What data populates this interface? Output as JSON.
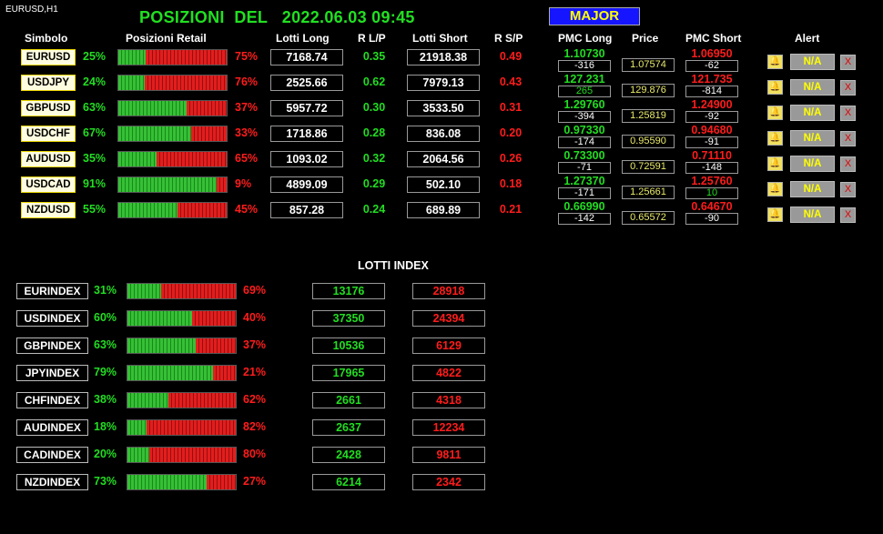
{
  "chart_label": "EURUSD,H1",
  "title": {
    "text": "POSIZIONI  DEL   2022.06.03 09:45"
  },
  "major_button": "MAJOR",
  "headers": {
    "simbolo": "Simbolo",
    "posizioni": "Posizioni Retail",
    "lotti_long": "Lotti Long",
    "rlp": "R L/P",
    "lotti_short": "Lotti Short",
    "rsp": "R S/P",
    "pmc_long": "PMC Long",
    "price": "Price",
    "pmc_short": "PMC Short",
    "alert": "Alert"
  },
  "pairs": [
    {
      "symbol": "EURUSD",
      "long_pct": "25%",
      "long_frac": 0.25,
      "short_pct": "75%",
      "lotti_long": "7168.74",
      "rlp": "0.35",
      "lotti_short": "21918.38",
      "rsp": "0.49",
      "pmc_long": "1.10730",
      "pmc_long_diff": "-316",
      "price": "1.07574",
      "pmc_short": "1.06950",
      "pmc_short_diff": "-62",
      "alert": "N/A",
      "bell": "🔔",
      "close": "X"
    },
    {
      "symbol": "USDJPY",
      "long_pct": "24%",
      "long_frac": 0.24,
      "short_pct": "76%",
      "lotti_long": "2525.66",
      "rlp": "0.62",
      "lotti_short": "7979.13",
      "rsp": "0.43",
      "pmc_long": "127.231",
      "pmc_long_diff": "265",
      "price": "129.876",
      "pmc_short": "121.735",
      "pmc_short_diff": "-814",
      "alert": "N/A",
      "bell": "🔔",
      "close": "X"
    },
    {
      "symbol": "GBPUSD",
      "long_pct": "63%",
      "long_frac": 0.63,
      "short_pct": "37%",
      "lotti_long": "5957.72",
      "rlp": "0.30",
      "lotti_short": "3533.50",
      "rsp": "0.31",
      "pmc_long": "1.29760",
      "pmc_long_diff": "-394",
      "price": "1.25819",
      "pmc_short": "1.24900",
      "pmc_short_diff": "-92",
      "alert": "N/A",
      "bell": "🔔",
      "close": "X"
    },
    {
      "symbol": "USDCHF",
      "long_pct": "67%",
      "long_frac": 0.67,
      "short_pct": "33%",
      "lotti_long": "1718.86",
      "rlp": "0.28",
      "lotti_short": "836.08",
      "rsp": "0.20",
      "pmc_long": "0.97330",
      "pmc_long_diff": "-174",
      "price": "0.95590",
      "pmc_short": "0.94680",
      "pmc_short_diff": "-91",
      "alert": "N/A",
      "bell": "🔔",
      "close": "X"
    },
    {
      "symbol": "AUDUSD",
      "long_pct": "35%",
      "long_frac": 0.35,
      "short_pct": "65%",
      "lotti_long": "1093.02",
      "rlp": "0.32",
      "lotti_short": "2064.56",
      "rsp": "0.26",
      "pmc_long": "0.73300",
      "pmc_long_diff": "-71",
      "price": "0.72591",
      "pmc_short": "0.71110",
      "pmc_short_diff": "-148",
      "alert": "N/A",
      "bell": "🔔",
      "close": "X"
    },
    {
      "symbol": "USDCAD",
      "long_pct": "91%",
      "long_frac": 0.91,
      "short_pct": "9%",
      "lotti_long": "4899.09",
      "rlp": "0.29",
      "lotti_short": "502.10",
      "rsp": "0.18",
      "pmc_long": "1.27370",
      "pmc_long_diff": "-171",
      "price": "1.25661",
      "pmc_short": "1.25760",
      "pmc_short_diff": "10",
      "alert": "N/A",
      "bell": "🔔",
      "close": "X"
    },
    {
      "symbol": "NZDUSD",
      "long_pct": "55%",
      "long_frac": 0.55,
      "short_pct": "45%",
      "lotti_long": "857.28",
      "rlp": "0.24",
      "lotti_short": "689.89",
      "rsp": "0.21",
      "pmc_long": "0.66990",
      "pmc_long_diff": "-142",
      "price": "0.65572",
      "pmc_short": "0.64670",
      "pmc_short_diff": "-90",
      "alert": "N/A",
      "bell": "🔔",
      "close": "X"
    }
  ],
  "lotti_index_title": "LOTTI INDEX",
  "indexes": [
    {
      "name": "EURINDEX",
      "long_pct": "31%",
      "long_frac": 0.31,
      "short_pct": "69%",
      "long": "13176",
      "short": "28918"
    },
    {
      "name": "USDINDEX",
      "long_pct": "60%",
      "long_frac": 0.6,
      "short_pct": "40%",
      "long": "37350",
      "short": "24394"
    },
    {
      "name": "GBPINDEX",
      "long_pct": "63%",
      "long_frac": 0.63,
      "short_pct": "37%",
      "long": "10536",
      "short": "6129"
    },
    {
      "name": "JPYINDEX",
      "long_pct": "79%",
      "long_frac": 0.79,
      "short_pct": "21%",
      "long": "17965",
      "short": "4822"
    },
    {
      "name": "CHFINDEX",
      "long_pct": "38%",
      "long_frac": 0.38,
      "short_pct": "62%",
      "long": "2661",
      "short": "4318"
    },
    {
      "name": "AUDINDEX",
      "long_pct": "18%",
      "long_frac": 0.18,
      "short_pct": "82%",
      "long": "2637",
      "short": "12234"
    },
    {
      "name": "CADINDEX",
      "long_pct": "20%",
      "long_frac": 0.2,
      "short_pct": "80%",
      "long": "2428",
      "short": "9811"
    },
    {
      "name": "NZDINDEX",
      "long_pct": "73%",
      "long_frac": 0.73,
      "short_pct": "27%",
      "long": "6214",
      "short": "2342"
    }
  ],
  "colors": {
    "green": "#22dd22",
    "red": "#ff1c1c",
    "price": "#e9e96a",
    "major_bg": "#1515ff",
    "major_text": "#ffff00"
  }
}
